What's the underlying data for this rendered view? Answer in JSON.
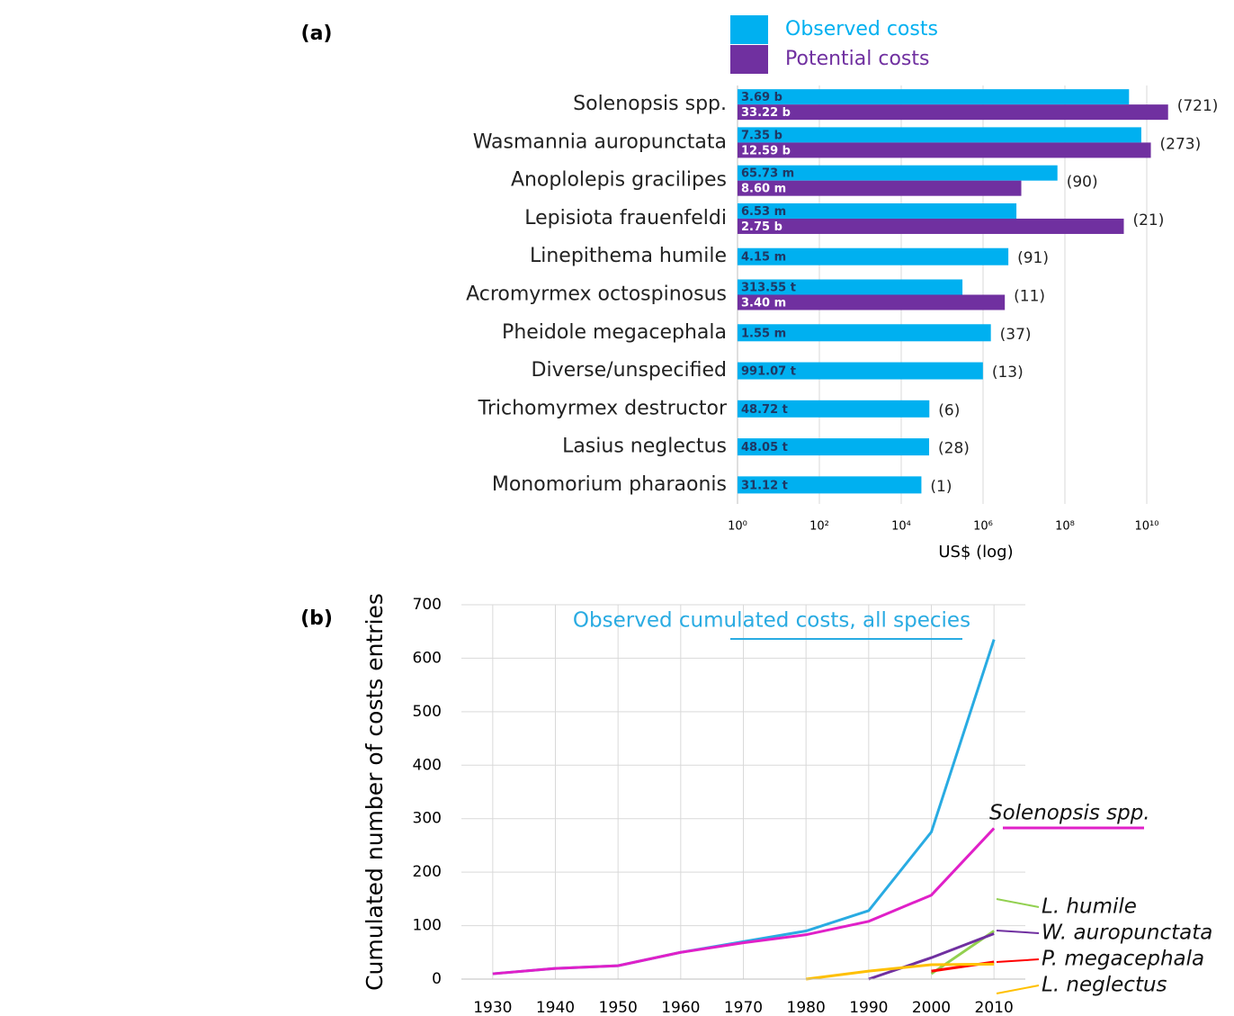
{
  "chart_data": [
    {
      "type": "hbar-log",
      "panel": "(a)",
      "x_label": "US$ (log)",
      "log_scale": true,
      "grid": true,
      "legend": "top",
      "categories": [
        "Solenopsis spp.",
        "Wasmannia auropunctata",
        "Anoplolepis gracilipes",
        "Lepisiota frauenfeldi",
        "Linepithema humile",
        "Acromyrmex octospinosus",
        "Pheidole megacephala",
        "Diverse/unspecified",
        "Trichomyrmex destructor",
        "Lasius neglectus",
        "Monomorium pharaonis"
      ],
      "series": [
        {
          "name": "Observed costs",
          "color": "#00b0f0",
          "label_color": "#1f3864",
          "values": [
            3690000000,
            7350000000,
            65730000,
            6530000,
            4150000,
            313550,
            1550000,
            991070,
            48720,
            48050,
            31120
          ],
          "value_labels": [
            "3.69 b",
            "7.35 b",
            "65.73 m",
            "6.53 m",
            "4.15 m",
            "313.55 t",
            "1.55 m",
            "991.07 t",
            "48.72 t",
            "48.05 t",
            "31.12 t"
          ]
        },
        {
          "name": "Potential costs",
          "color": "#7030a0",
          "label_color": "#ffffff",
          "values": [
            33220000000,
            12590000000,
            8600000,
            2750000000,
            null,
            3400000,
            null,
            null,
            null,
            null,
            null
          ],
          "value_labels": [
            "33.22 b",
            "12.59 b",
            "8.60 m",
            "2.75 b",
            null,
            "3.40 m",
            null,
            null,
            null,
            null,
            null
          ]
        }
      ],
      "annotations": [
        "(721)",
        "(273)",
        "(90)",
        "(21)",
        "(91)",
        "(11)",
        "(37)",
        "(13)",
        "(6)",
        "(28)",
        "(1)"
      ],
      "xlim": [
        1,
        1000000000000
      ],
      "xticks": [
        {
          "value": 1,
          "label": "10⁰"
        },
        {
          "value": 100,
          "label": "10²"
        },
        {
          "value": 10000,
          "label": "10⁴"
        },
        {
          "value": 1000000,
          "label": "10⁶"
        },
        {
          "value": 100000000,
          "label": "10⁸"
        },
        {
          "value": 10000000000,
          "label": "10¹⁰"
        }
      ]
    },
    {
      "type": "line",
      "panel": "(b)",
      "y_label": "Cumulated number of costs entries",
      "grid": true,
      "x": [
        1930,
        1940,
        1950,
        1960,
        1970,
        1980,
        1990,
        2000,
        2010
      ],
      "series": [
        {
          "name": "Observed cumulated costs, all species",
          "color": "#29abe2",
          "values": [
            10,
            20,
            25,
            50,
            70,
            90,
            128,
            275,
            635
          ]
        },
        {
          "name": "Solenopsis spp.",
          "color": "#e020c8",
          "values": [
            10,
            20,
            25,
            50,
            68,
            83,
            108,
            157,
            282
          ]
        },
        {
          "name": "L. humile",
          "color": "#92d050",
          "values": [
            null,
            null,
            null,
            null,
            null,
            null,
            null,
            10,
            90
          ]
        },
        {
          "name": "W. auropunctata",
          "color": "#7030a0",
          "values": [
            null,
            null,
            null,
            null,
            null,
            null,
            0,
            40,
            85
          ]
        },
        {
          "name": "P. megacephala",
          "color": "#ff0000",
          "values": [
            null,
            null,
            null,
            null,
            null,
            null,
            null,
            15,
            32
          ]
        },
        {
          "name": "L. neglectus",
          "color": "#ffc000",
          "values": [
            null,
            null,
            null,
            null,
            null,
            0,
            15,
            27,
            28
          ]
        }
      ],
      "xlim": [
        1925,
        2015
      ],
      "xticks": [
        1930,
        1940,
        1950,
        1960,
        1970,
        1980,
        1990,
        2000,
        2010
      ],
      "ylim": [
        0,
        700
      ],
      "yticks": [
        0,
        100,
        200,
        300,
        400,
        500,
        600,
        700
      ]
    }
  ]
}
